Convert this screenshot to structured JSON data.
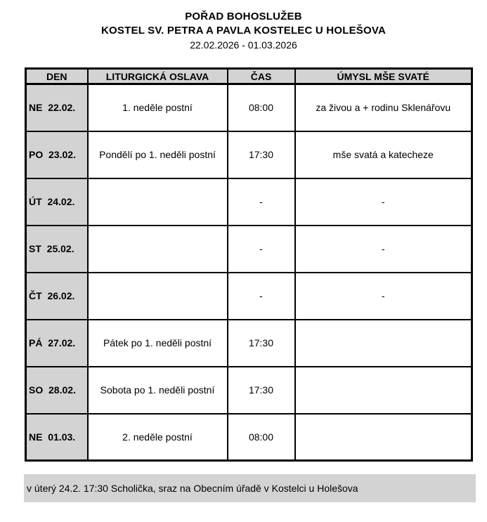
{
  "header": {
    "title": "POŘAD BOHOSLUŽEB",
    "subtitle": "KOSTEL SV. PETRA A PAVLA KOSTELEC U HOLEŠOVA",
    "date_range": "22.02.2026 - 01.03.2026"
  },
  "table": {
    "columns": [
      "DEN",
      "LITURGICKÁ OSLAVA",
      "ČAS",
      "ÚMYSL MŠE SVATÉ"
    ],
    "rows": [
      {
        "day": "NE  22.02.",
        "liturgy": "1. neděle postní",
        "time": "08:00",
        "intention": "za živou a + rodinu Sklenářovu"
      },
      {
        "day": "PO  23.02.",
        "liturgy": "Pondělí po 1. neděli postní",
        "time": "17:30",
        "intention": "mše svatá a katecheze"
      },
      {
        "day": "ÚT  24.02.",
        "liturgy": "",
        "time": "-",
        "intention": "-"
      },
      {
        "day": "ST  25.02.",
        "liturgy": "",
        "time": "-",
        "intention": "-"
      },
      {
        "day": "ČT  26.02.",
        "liturgy": "",
        "time": "-",
        "intention": "-"
      },
      {
        "day": "PÁ  27.02.",
        "liturgy": "Pátek po 1. neděli postní",
        "time": "17:30",
        "intention": ""
      },
      {
        "day": "SO  28.02.",
        "liturgy": "Sobota po 1. neděli postní",
        "time": "17:30",
        "intention": ""
      },
      {
        "day": "NE  01.03.",
        "liturgy": "2. neděle postní",
        "time": "08:00",
        "intention": ""
      }
    ]
  },
  "footnote": {
    "text": "v úterý 24.2. 17:30 Scholička, sraz na Obecním úřadě v Kostelci u Holešova"
  },
  "colors": {
    "header_bg": "#d3d3d3",
    "day_column_bg": "#d3d3d3",
    "footnote_bg": "#d3d3d3",
    "border": "#000000",
    "page_bg": "#ffffff",
    "text": "#000000"
  }
}
